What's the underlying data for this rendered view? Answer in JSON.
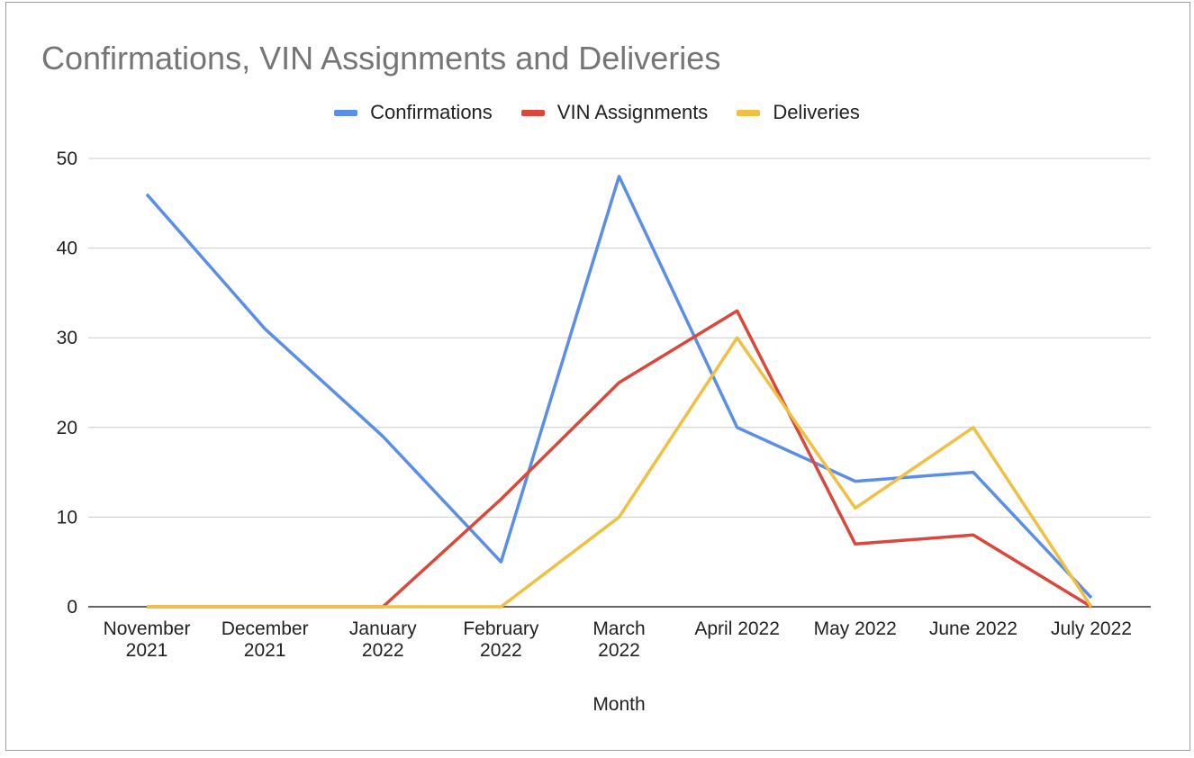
{
  "chart_data": {
    "type": "line",
    "title": "Confirmations, VIN Assignments and Deliveries",
    "xlabel": "Month",
    "ylabel": "",
    "ylim": [
      0,
      50
    ],
    "yticks": [
      0,
      10,
      20,
      30,
      40,
      50
    ],
    "grid": true,
    "legend_position": "top",
    "categories": [
      [
        "November",
        "2021"
      ],
      [
        "December",
        "2021"
      ],
      [
        "January",
        "2022"
      ],
      [
        "February",
        "2022"
      ],
      [
        "March",
        "2022"
      ],
      [
        "April 2022"
      ],
      [
        "May 2022"
      ],
      [
        "June 2022"
      ],
      [
        "July 2022"
      ]
    ],
    "series": [
      {
        "name": "Confirmations",
        "color": "#5b8ee6",
        "values": [
          46,
          31,
          19,
          5,
          48,
          20,
          14,
          15,
          1
        ]
      },
      {
        "name": "VIN Assignments",
        "color": "#d9483b",
        "values": [
          0,
          0,
          0,
          12,
          25,
          33,
          7,
          8,
          0
        ]
      },
      {
        "name": "Deliveries",
        "color": "#f0c043",
        "values": [
          0,
          0,
          0,
          0,
          10,
          30,
          11,
          20,
          0
        ]
      }
    ]
  }
}
